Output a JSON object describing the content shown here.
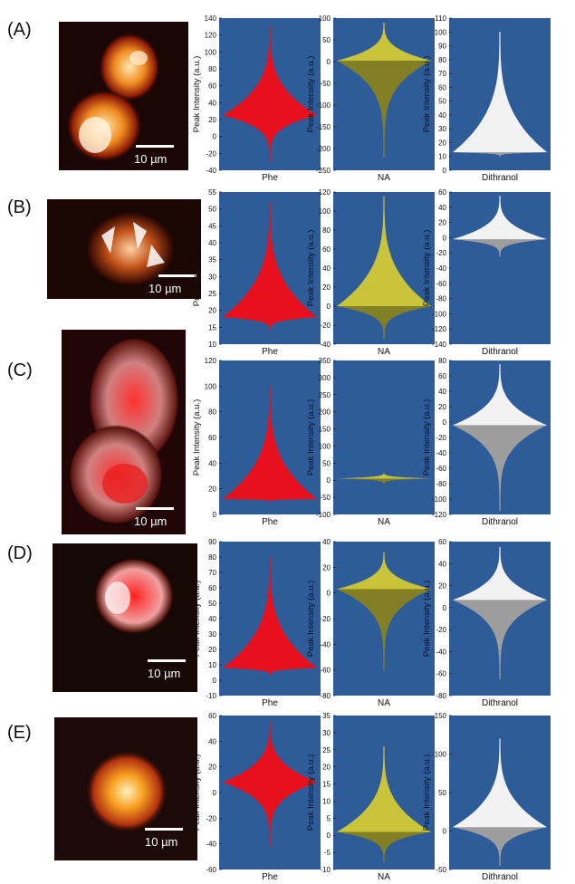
{
  "panel_letters": [
    "(A)",
    "(B)",
    "(C)",
    "(D)",
    "(E)"
  ],
  "scale_bar_label": "10 µm",
  "ylabel": "Peak Intensity (a.u.)",
  "colors": {
    "plot_bg": "#2e5c99",
    "Phe": "#e8101c",
    "NA": "#c9c43a",
    "Dithranol": "#f2f2f2"
  },
  "chart_data": [
    {
      "type": "violin",
      "row": "(A)",
      "xlabel": "Phe",
      "color": "Phe",
      "ylim": [
        -40,
        140
      ],
      "yticks": [
        -40,
        -20,
        0,
        20,
        40,
        60,
        80,
        100,
        120,
        140
      ],
      "center": 25,
      "top": 130,
      "bottom": -30
    },
    {
      "type": "violin",
      "row": "(A)",
      "xlabel": "NA",
      "color": "NA",
      "ylim": [
        -250,
        100
      ],
      "yticks": [
        -250,
        -200,
        -150,
        -100,
        -50,
        0,
        50,
        100
      ],
      "center": 2,
      "top": 90,
      "bottom": -220
    },
    {
      "type": "violin",
      "row": "(A)",
      "xlabel": "Dithranol",
      "color": "Dithranol",
      "ylim": [
        0,
        110
      ],
      "yticks": [
        0,
        10,
        20,
        30,
        40,
        50,
        60,
        70,
        80,
        90,
        100,
        110
      ],
      "center": 13,
      "top": 100,
      "bottom": 10
    },
    {
      "type": "violin",
      "row": "(B)",
      "xlabel": "Phe",
      "color": "Phe",
      "ylim": [
        10,
        55
      ],
      "yticks": [
        10,
        15,
        20,
        25,
        30,
        35,
        40,
        45,
        50,
        55
      ],
      "center": 18,
      "top": 52,
      "bottom": 14
    },
    {
      "type": "violin",
      "row": "(B)",
      "xlabel": "NA",
      "color": "NA",
      "ylim": [
        -40,
        120
      ],
      "yticks": [
        -40,
        -20,
        0,
        20,
        40,
        60,
        80,
        100,
        120
      ],
      "center": 0,
      "top": 115,
      "bottom": -35
    },
    {
      "type": "violin",
      "row": "(B)",
      "xlabel": "Dithranol",
      "color": "Dithranol",
      "ylim": [
        -140,
        60
      ],
      "yticks": [
        -140,
        -120,
        -100,
        -80,
        -60,
        -40,
        -20,
        0,
        20,
        40,
        60
      ],
      "center": -2,
      "top": 55,
      "bottom": -25
    },
    {
      "type": "violin",
      "row": "(C)",
      "xlabel": "Phe",
      "color": "Phe",
      "ylim": [
        0,
        120
      ],
      "yticks": [
        0,
        20,
        40,
        60,
        80,
        100,
        120
      ],
      "center": 12,
      "top": 100,
      "bottom": 10
    },
    {
      "type": "violin",
      "row": "(C)",
      "xlabel": "NA",
      "color": "NA",
      "ylim": [
        -100,
        350
      ],
      "yticks": [
        -100,
        -50,
        0,
        50,
        100,
        150,
        200,
        250,
        300,
        350
      ],
      "center": 5,
      "top": 20,
      "bottom": -10
    },
    {
      "type": "violin",
      "row": "(C)",
      "xlabel": "Dithranol",
      "color": "Dithranol",
      "ylim": [
        -120,
        80
      ],
      "yticks": [
        -120,
        -100,
        -80,
        -60,
        -40,
        -20,
        0,
        20,
        40,
        60,
        80
      ],
      "center": -4,
      "top": 75,
      "bottom": -115
    },
    {
      "type": "violin",
      "row": "(D)",
      "xlabel": "Phe",
      "color": "Phe",
      "ylim": [
        -10,
        90
      ],
      "yticks": [
        -10,
        0,
        10,
        20,
        30,
        40,
        50,
        60,
        70,
        80,
        90
      ],
      "center": 8,
      "top": 80,
      "bottom": 3
    },
    {
      "type": "violin",
      "row": "(D)",
      "xlabel": "NA",
      "color": "NA",
      "ylim": [
        -80,
        40
      ],
      "yticks": [
        -80,
        -60,
        -40,
        -20,
        0,
        20,
        40
      ],
      "center": 3,
      "top": 32,
      "bottom": -60
    },
    {
      "type": "violin",
      "row": "(D)",
      "xlabel": "Dithranol",
      "color": "Dithranol",
      "ylim": [
        -80,
        60
      ],
      "yticks": [
        -80,
        -60,
        -40,
        -20,
        0,
        20,
        40,
        60
      ],
      "center": 7,
      "top": 55,
      "bottom": -65
    },
    {
      "type": "violin",
      "row": "(E)",
      "xlabel": "Phe",
      "color": "Phe",
      "ylim": [
        -60,
        60
      ],
      "yticks": [
        -60,
        -40,
        -20,
        0,
        20,
        40,
        60
      ],
      "center": 8,
      "top": 55,
      "bottom": -42
    },
    {
      "type": "violin",
      "row": "(E)",
      "xlabel": "NA",
      "color": "NA",
      "ylim": [
        -10,
        35
      ],
      "yticks": [
        -10,
        -5,
        0,
        5,
        10,
        15,
        20,
        25,
        30,
        35
      ],
      "center": 1,
      "top": 26,
      "bottom": -8
    },
    {
      "type": "violin",
      "row": "(E)",
      "xlabel": "Dithranol",
      "color": "Dithranol",
      "ylim": [
        -50,
        150
      ],
      "yticks": [
        -50,
        0,
        50,
        100,
        150
      ],
      "center": 5,
      "top": 120,
      "bottom": -45
    }
  ]
}
